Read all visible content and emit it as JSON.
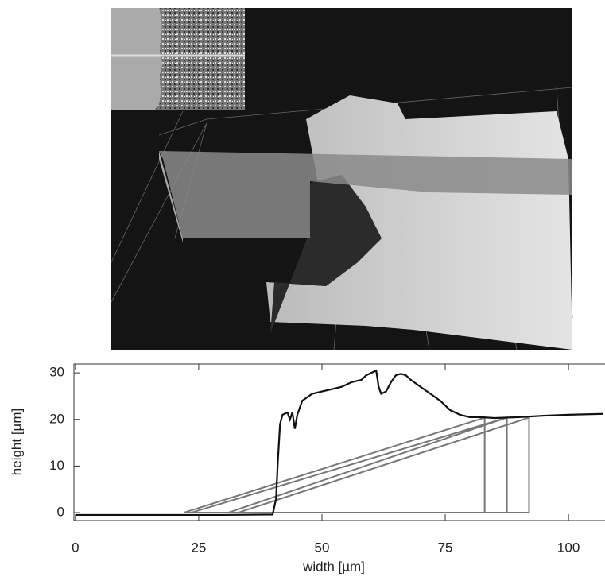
{
  "chart_data": {
    "type": "line",
    "x_label": "width [µm]",
    "y_label": "height [µm]",
    "xlim": [
      -0.3,
      107.4
    ],
    "ylim": [
      -1.7,
      31.9
    ],
    "xticks": [
      0,
      25,
      50,
      75,
      100
    ],
    "yticks": [
      0,
      10,
      20,
      30
    ],
    "series": [
      {
        "color": "#111111",
        "x": [
          0,
          10,
          20,
          30,
          40,
          40.7,
          41,
          41.5,
          42,
          43,
          43.5,
          44,
          44.5,
          45,
          46,
          48,
          50,
          52,
          54,
          56,
          58,
          59,
          60,
          61,
          61.5,
          62,
          63,
          64,
          65,
          66,
          67,
          68,
          70,
          72,
          74,
          76,
          78,
          80,
          82,
          85,
          90,
          95,
          100,
          107
        ],
        "values": [
          -0.5,
          -0.5,
          -0.5,
          -0.5,
          -0.4,
          3,
          10,
          19,
          21,
          21.5,
          20,
          21.5,
          18,
          21,
          24,
          25.5,
          26,
          26.5,
          27,
          28,
          28.5,
          29.5,
          30,
          30.5,
          27,
          25.5,
          26,
          28,
          29.5,
          29.8,
          29.5,
          28.5,
          27,
          25.5,
          24,
          22,
          21,
          20.5,
          20.5,
          20.3,
          20.5,
          20.8,
          21,
          21.2
        ]
      },
      {
        "color": "#777777",
        "x": [
          22,
          83,
          83
        ],
        "values": [
          0,
          20.4,
          0
        ]
      },
      {
        "color": "#777777",
        "x": [
          23.5,
          87.5,
          87.5
        ],
        "values": [
          0,
          20.4,
          0
        ]
      },
      {
        "color": "#777777",
        "x": [
          31,
          87.5
        ],
        "values": [
          0,
          20.4
        ]
      },
      {
        "color": "#777777",
        "x": [
          33,
          92,
          92
        ],
        "values": [
          0,
          20.4,
          0
        ]
      },
      {
        "color": "#777777",
        "x": [
          22,
          92
        ],
        "values": [
          0,
          0
        ]
      }
    ]
  }
}
